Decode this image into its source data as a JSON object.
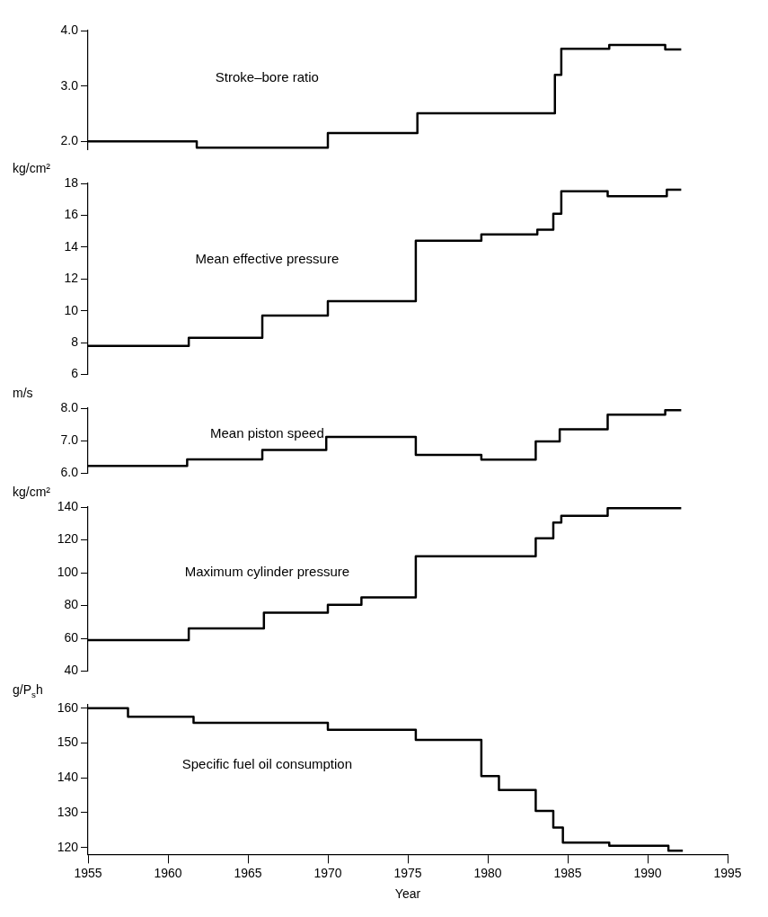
{
  "chart_data": [
    {
      "type": "step",
      "title": "Stroke–bore ratio",
      "xlim": [
        1955,
        1995
      ],
      "xticks": [
        1955,
        1960,
        1965,
        1970,
        1975,
        1980,
        1985,
        1990,
        1995
      ],
      "tick_labels": "y",
      "ylim": [
        1.85,
        4.0
      ],
      "yticks": [
        {
          "value": 2,
          "label": "2.0"
        },
        {
          "value": 3,
          "label": "3.0"
        },
        {
          "value": 4,
          "label": "4.0"
        }
      ],
      "marker": "none",
      "line_style": "solid",
      "x": [
        1955,
        1961.8,
        1970.0,
        1975.6,
        1984.2,
        1984.6,
        1987.6,
        1991.1,
        1992.1
      ],
      "series": [
        {
          "color": "#000000",
          "values": [
            2.0,
            1.89,
            2.15,
            2.51,
            3.2,
            3.67,
            3.74,
            3.66,
            3.66
          ]
        }
      ]
    },
    {
      "type": "step",
      "title": "Mean effective pressure",
      "ylabel": "kg/cm²",
      "xlim": [
        1955,
        1995
      ],
      "xticks": [
        1955,
        1960,
        1965,
        1970,
        1975,
        1980,
        1985,
        1990,
        1995
      ],
      "tick_labels": "y",
      "ylim": [
        6,
        18
      ],
      "yticks": [
        6,
        8,
        10,
        12,
        14,
        16,
        18
      ],
      "marker": "none",
      "line_style": "solid",
      "x": [
        1955,
        1961.3,
        1965.9,
        1970.0,
        1975.5,
        1979.6,
        1983.1,
        1984.1,
        1984.6,
        1987.5,
        1991.2,
        1992.1
      ],
      "series": [
        {
          "color": "#000000",
          "values": [
            7.8,
            8.3,
            9.7,
            10.6,
            14.4,
            14.8,
            15.1,
            16.1,
            17.5,
            17.2,
            17.6,
            17.6
          ]
        }
      ]
    },
    {
      "type": "step",
      "title": "Mean piston speed",
      "ylabel": "m/s",
      "xlim": [
        1955,
        1995
      ],
      "xticks": [
        1955,
        1960,
        1965,
        1970,
        1975,
        1980,
        1985,
        1990,
        1995
      ],
      "tick_labels": "y",
      "ylim": [
        6,
        8
      ],
      "yticks": [
        {
          "value": 6,
          "label": "6.0"
        },
        {
          "value": 7,
          "label": "7.0"
        },
        {
          "value": 8,
          "label": "8.0"
        }
      ],
      "marker": "none",
      "line_style": "solid",
      "x": [
        1955,
        1961.2,
        1965.9,
        1969.9,
        1975.5,
        1979.6,
        1983.0,
        1984.5,
        1987.5,
        1991.1,
        1992.1
      ],
      "series": [
        {
          "color": "#000000",
          "values": [
            6.23,
            6.43,
            6.72,
            7.12,
            6.57,
            6.42,
            6.98,
            7.35,
            7.8,
            7.94,
            7.94
          ]
        }
      ]
    },
    {
      "type": "step",
      "title": "Maximum cylinder pressure",
      "ylabel": "kg/cm²",
      "xlim": [
        1955,
        1995
      ],
      "xticks": [
        1955,
        1960,
        1965,
        1970,
        1975,
        1980,
        1985,
        1990,
        1995
      ],
      "tick_labels": "y",
      "ylim": [
        40,
        140
      ],
      "yticks": [
        40,
        60,
        80,
        100,
        120,
        140
      ],
      "marker": "none",
      "line_style": "solid",
      "x": [
        1955,
        1961.3,
        1966.0,
        1970.0,
        1972.1,
        1975.5,
        1983.0,
        1984.1,
        1984.6,
        1987.5,
        1992.1
      ],
      "series": [
        {
          "color": "#000000",
          "values": [
            59,
            66,
            75.6,
            80.5,
            85,
            110,
            121,
            130.6,
            134.6,
            139.3,
            139.3
          ]
        }
      ]
    },
    {
      "type": "step",
      "title": "Specific fuel oil consumption",
      "ylabel": "g/P$_{s}$h",
      "xlabel": "Year",
      "xlim": [
        1955,
        1995
      ],
      "xticks": [
        1955,
        1960,
        1965,
        1970,
        1975,
        1980,
        1985,
        1990,
        1995
      ],
      "ylim": [
        118,
        161
      ],
      "yticks": [
        120,
        130,
        140,
        150,
        160
      ],
      "marker": "none",
      "line_style": "solid",
      "x": [
        1955,
        1957.5,
        1961.6,
        1970.0,
        1975.5,
        1979.6,
        1980.7,
        1983.0,
        1984.1,
        1984.7,
        1987.6,
        1991.3,
        1992.2
      ],
      "series": [
        {
          "color": "#000000",
          "values": [
            160,
            157.6,
            155.8,
            153.8,
            150.9,
            140.5,
            136.5,
            130.5,
            125.7,
            121.4,
            120.5,
            119.1,
            119.1
          ]
        }
      ]
    }
  ]
}
